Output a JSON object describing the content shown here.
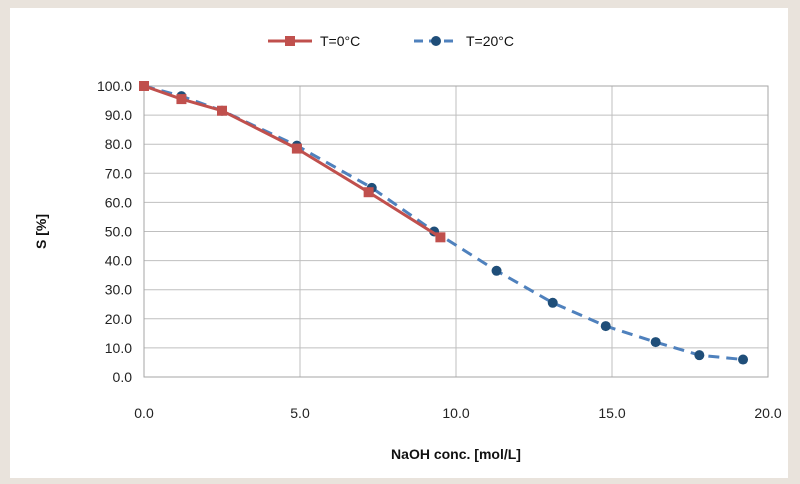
{
  "chart_data": {
    "type": "line",
    "title": "",
    "xlabel": "NaOH conc. [mol/L]",
    "ylabel": "S [%]",
    "xlim": [
      0,
      20
    ],
    "ylim": [
      0,
      100
    ],
    "x_ticks": [
      "0.0",
      "5.0",
      "10.0",
      "15.0",
      "20.0"
    ],
    "y_ticks": [
      "0.0",
      "10.0",
      "20.0",
      "30.0",
      "40.0",
      "50.0",
      "60.0",
      "70.0",
      "80.0",
      "90.0",
      "100.0"
    ],
    "grid": true,
    "legend_position": "top-center",
    "series": [
      {
        "name": "T=0°C",
        "color": "#c0504d",
        "line_style": "solid",
        "marker": "square",
        "x": [
          0.0,
          1.2,
          2.5,
          4.9,
          7.2,
          9.5
        ],
        "y": [
          100.0,
          95.5,
          91.5,
          78.5,
          63.5,
          48.0
        ]
      },
      {
        "name": "T=20°C",
        "color": "#4f81bd",
        "marker_color": "#1f4e79",
        "line_style": "dashed",
        "marker": "circle",
        "x": [
          0.0,
          1.2,
          2.5,
          4.9,
          7.3,
          9.3,
          11.3,
          13.1,
          14.8,
          16.4,
          17.8,
          19.2
        ],
        "y": [
          100.0,
          96.5,
          91.5,
          79.5,
          65.0,
          50.0,
          36.5,
          25.5,
          17.5,
          12.0,
          7.5,
          6.0
        ]
      }
    ]
  }
}
